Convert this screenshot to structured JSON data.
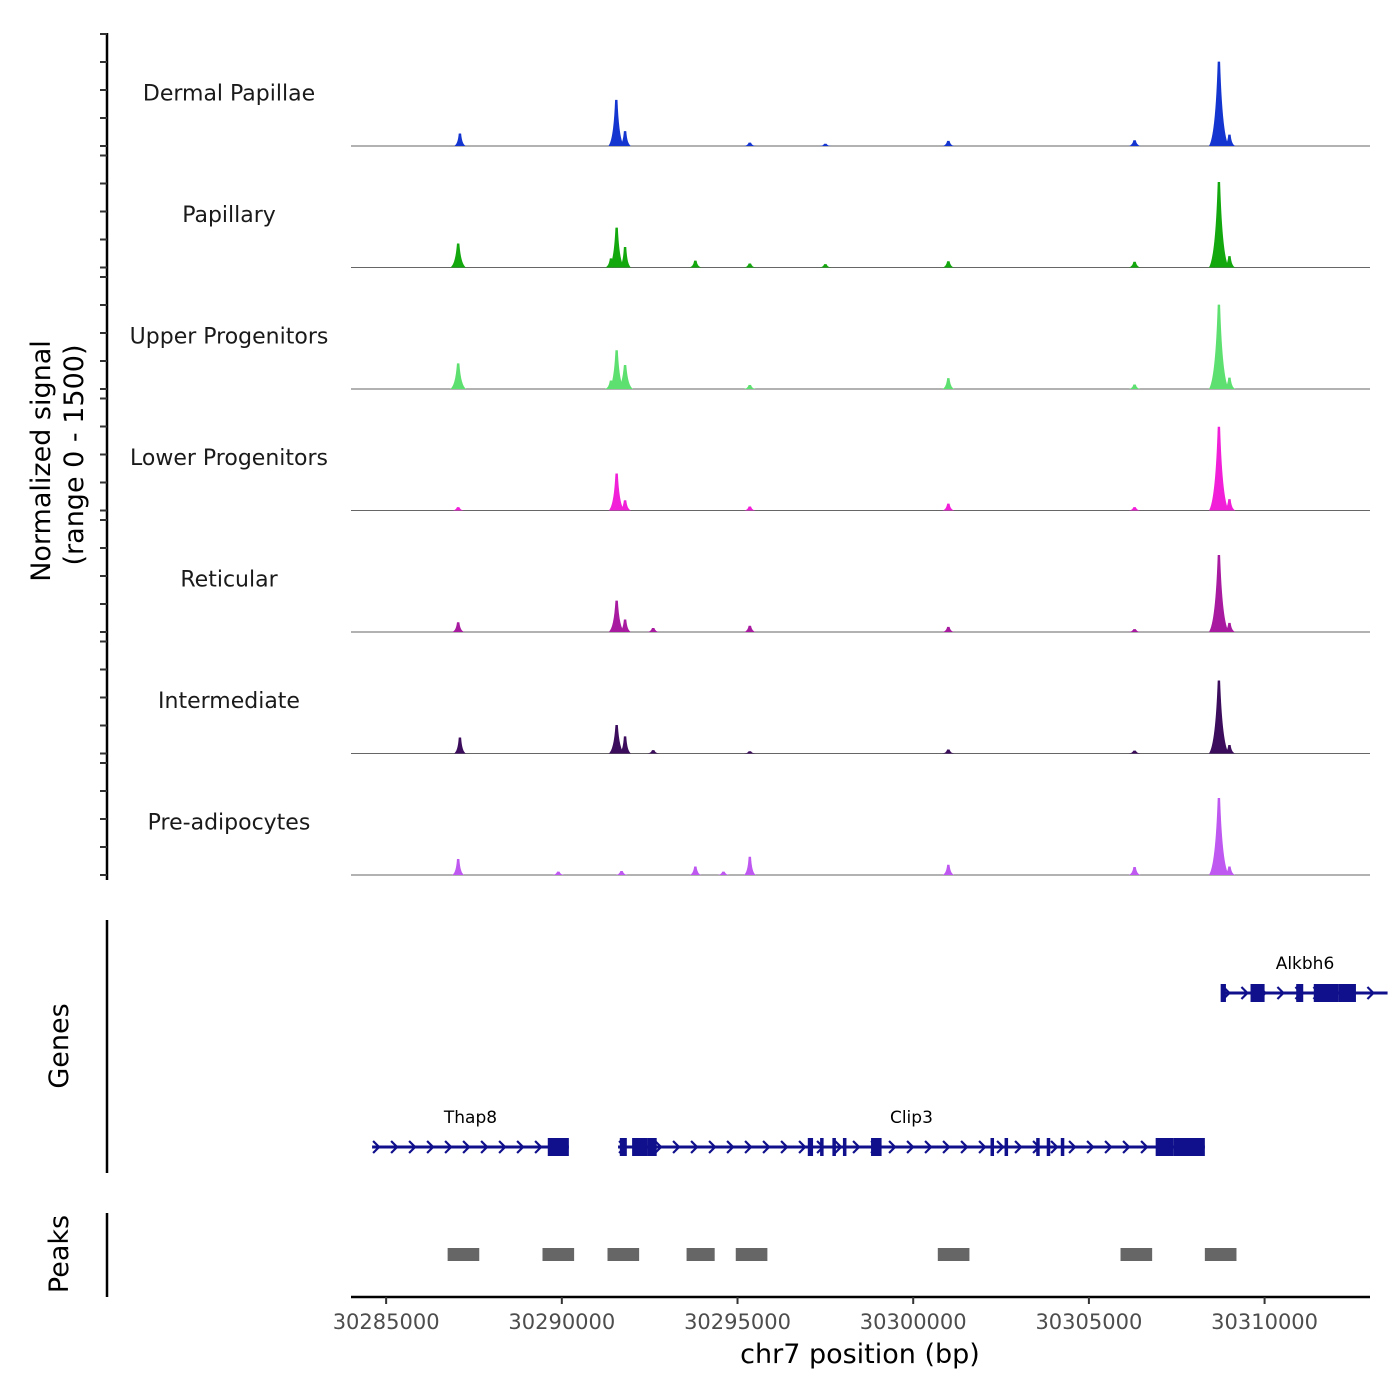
{
  "chart_data": {
    "type": "area",
    "chromosome": "chr7",
    "xlabel": "chr7 position (bp)",
    "xlim": [
      30284000,
      30313000
    ],
    "x_ticks": [
      30285000,
      30290000,
      30295000,
      30300000,
      30305000,
      30310000
    ],
    "x_tick_labels": [
      "30285000",
      "30290000",
      "30295000",
      "30300000",
      "30305000",
      "30310000"
    ],
    "signal_ylabel": [
      "Normalized signal",
      "(range 0 - 1500)"
    ],
    "ylim": [
      0,
      1500
    ],
    "tracks": [
      {
        "name": "Dermal Papillae",
        "color": "#1535d0",
        "peaks": [
          [
            30287100,
            220
          ],
          [
            30291550,
            810
          ],
          [
            30291800,
            260
          ],
          [
            30295350,
            60
          ],
          [
            30297500,
            40
          ],
          [
            30301000,
            90
          ],
          [
            30306300,
            100
          ],
          [
            30308700,
            1480
          ],
          [
            30309000,
            200
          ]
        ]
      },
      {
        "name": "Papillary",
        "color": "#13a80e",
        "peaks": [
          [
            30287050,
            420
          ],
          [
            30291400,
            160
          ],
          [
            30291560,
            700
          ],
          [
            30291800,
            360
          ],
          [
            30293800,
            120
          ],
          [
            30295350,
            70
          ],
          [
            30297500,
            60
          ],
          [
            30301000,
            110
          ],
          [
            30306300,
            100
          ],
          [
            30308700,
            1500
          ],
          [
            30309000,
            200
          ]
        ]
      },
      {
        "name": "Upper Progenitors",
        "color": "#5ee070",
        "peaks": [
          [
            30287050,
            450
          ],
          [
            30291400,
            150
          ],
          [
            30291560,
            680
          ],
          [
            30291800,
            420
          ],
          [
            30295350,
            70
          ],
          [
            30301000,
            190
          ],
          [
            30306300,
            80
          ],
          [
            30308700,
            1480
          ],
          [
            30309000,
            200
          ]
        ]
      },
      {
        "name": "Lower Progenitors",
        "color": "#f120d8",
        "peaks": [
          [
            30287050,
            60
          ],
          [
            30291560,
            650
          ],
          [
            30291800,
            180
          ],
          [
            30295350,
            70
          ],
          [
            30301000,
            120
          ],
          [
            30306300,
            60
          ],
          [
            30308700,
            1470
          ],
          [
            30309000,
            200
          ]
        ]
      },
      {
        "name": "Reticular",
        "color": "#a81aa0",
        "peaks": [
          [
            30287050,
            170
          ],
          [
            30291560,
            550
          ],
          [
            30291800,
            220
          ],
          [
            30292600,
            70
          ],
          [
            30295350,
            110
          ],
          [
            30301000,
            90
          ],
          [
            30306300,
            50
          ],
          [
            30308700,
            1350
          ],
          [
            30309000,
            160
          ]
        ]
      },
      {
        "name": "Intermediate",
        "color": "#3c0d5c",
        "peaks": [
          [
            30287100,
            280
          ],
          [
            30291560,
            500
          ],
          [
            30291800,
            300
          ],
          [
            30292600,
            60
          ],
          [
            30295350,
            40
          ],
          [
            30301000,
            70
          ],
          [
            30306300,
            50
          ],
          [
            30308700,
            1280
          ],
          [
            30309000,
            150
          ]
        ]
      },
      {
        "name": "Pre-adipocytes",
        "color": "#be58f0",
        "peaks": [
          [
            30287050,
            280
          ],
          [
            30289900,
            60
          ],
          [
            30291700,
            70
          ],
          [
            30293800,
            150
          ],
          [
            30294600,
            60
          ],
          [
            30295350,
            320
          ],
          [
            30301000,
            180
          ],
          [
            30306300,
            140
          ],
          [
            30308700,
            1350
          ],
          [
            30309000,
            150
          ]
        ]
      }
    ],
    "genes_label": "Genes",
    "genes": [
      {
        "name": "Alkbh6",
        "start": 30308800,
        "end": 30313500,
        "strand": "+",
        "exons": [
          [
            30308750,
            30308900
          ],
          [
            30309600,
            30310000
          ],
          [
            30310900,
            30311100
          ],
          [
            30311400,
            30312100
          ],
          [
            30312100,
            30312600
          ]
        ]
      },
      {
        "name": "Thap8",
        "start": 30284600,
        "end": 30290200,
        "strand": "+",
        "exons": [
          [
            30289600,
            30290200
          ]
        ]
      },
      {
        "name": "Clip3",
        "start": 30291600,
        "end": 30308300,
        "strand": "+",
        "exons": [
          [
            30291650,
            30291850
          ],
          [
            30292000,
            30292450
          ],
          [
            30292450,
            30292700
          ],
          [
            30297000,
            30297150
          ],
          [
            30297350,
            30297450
          ],
          [
            30297700,
            30297800
          ],
          [
            30298000,
            30298100
          ],
          [
            30298800,
            30299100
          ],
          [
            30302200,
            30302300
          ],
          [
            30302600,
            30302700
          ],
          [
            30303500,
            30303600
          ],
          [
            30303800,
            30303900
          ],
          [
            30304200,
            30304300
          ],
          [
            30306900,
            30307400
          ],
          [
            30307400,
            30308300
          ]
        ]
      }
    ],
    "peaks_label": "Peaks",
    "peak_regions": [
      [
        30286750,
        30287650
      ],
      [
        30289450,
        30290350
      ],
      [
        30291300,
        30292200
      ],
      [
        30293550,
        30294350
      ],
      [
        30294950,
        30295850
      ],
      [
        30300700,
        30301600
      ],
      [
        30305900,
        30306800
      ],
      [
        30308300,
        30309200
      ]
    ]
  }
}
